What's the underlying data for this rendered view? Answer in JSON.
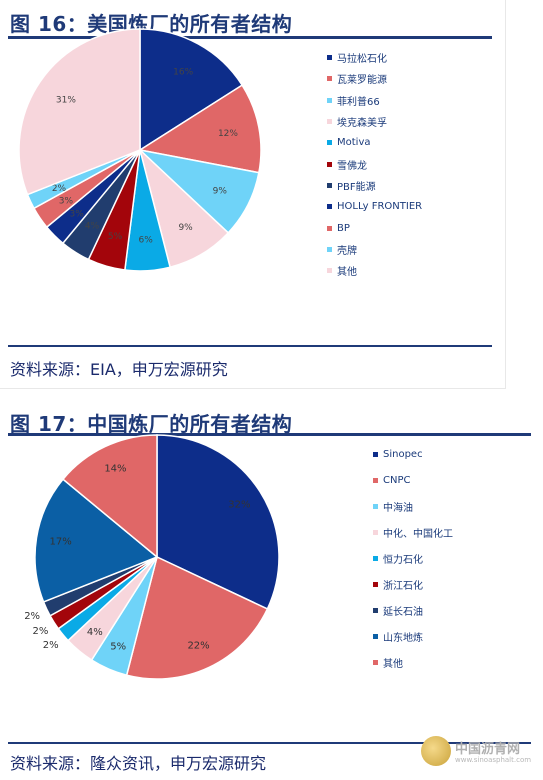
{
  "chart_data": [
    {
      "type": "pie",
      "title": "图 16：美国炼厂的所有者结构",
      "source": "资料来源：EIA，申万宏源研究",
      "unit": "%",
      "start_angle": "12 o'clock, clockwise",
      "legend_position": "right",
      "slices": [
        {
          "label": "马拉松石化",
          "value": 16,
          "display": "16%",
          "color": "#0d2d8a"
        },
        {
          "label": "瓦莱罗能源",
          "value": 12,
          "display": "12%",
          "color": "#e06767"
        },
        {
          "label": "菲利普66",
          "value": 9,
          "display": "9%",
          "color": "#6fd3f8"
        },
        {
          "label": "埃克森美孚",
          "value": 9,
          "display": "9%",
          "color": "#f7d6dc"
        },
        {
          "label": "Motiva",
          "value": 6,
          "display": "6%",
          "color": "#0aaae6"
        },
        {
          "label": "雪佛龙",
          "value": 5,
          "display": "5%",
          "color": "#a3050b"
        },
        {
          "label": "PBF能源",
          "value": 4,
          "display": "4%",
          "color": "#213d6e"
        },
        {
          "label": "HOLLy FRONTIER",
          "value": 3,
          "display": "3%",
          "color": "#0d2d8a"
        },
        {
          "label": "BP",
          "value": 3,
          "display": "3%",
          "color": "#e06767"
        },
        {
          "label": "壳牌",
          "value": 2,
          "display": "2%",
          "color": "#6fd3f8"
        },
        {
          "label": "其他",
          "value": 31,
          "display": "31%",
          "color": "#f7d6dc"
        }
      ]
    },
    {
      "type": "pie",
      "title": "图 17：中国炼厂的所有者结构",
      "source": "资料来源：隆众资讯，申万宏源研究",
      "unit": "%",
      "start_angle": "12 o'clock, clockwise",
      "legend_position": "right",
      "slices": [
        {
          "label": "Sinopec",
          "value": 32,
          "display": "32%",
          "color": "#0d2d8a"
        },
        {
          "label": "CNPC",
          "value": 22,
          "display": "22%",
          "color": "#e06767"
        },
        {
          "label": "中海油",
          "value": 5,
          "display": "5%",
          "color": "#6fd3f8"
        },
        {
          "label": "中化、中国化工",
          "value": 4,
          "display": "4%",
          "color": "#f7d6dc"
        },
        {
          "label": "恒力石化",
          "value": 2,
          "display": "2%",
          "color": "#0aaae6"
        },
        {
          "label": "浙江石化",
          "value": 2,
          "display": "2%",
          "color": "#a3050b"
        },
        {
          "label": "延长石油",
          "value": 2,
          "display": "2%",
          "color": "#213d6e"
        },
        {
          "label": "山东地炼",
          "value": 17,
          "display": "17%",
          "color": "#0b5fa5"
        },
        {
          "label": "其他",
          "value": 14,
          "display": "14%",
          "color": "#e06767"
        }
      ]
    }
  ],
  "watermark": {
    "name": "中国沥青网",
    "url": "www.sinoasphalt.com"
  }
}
